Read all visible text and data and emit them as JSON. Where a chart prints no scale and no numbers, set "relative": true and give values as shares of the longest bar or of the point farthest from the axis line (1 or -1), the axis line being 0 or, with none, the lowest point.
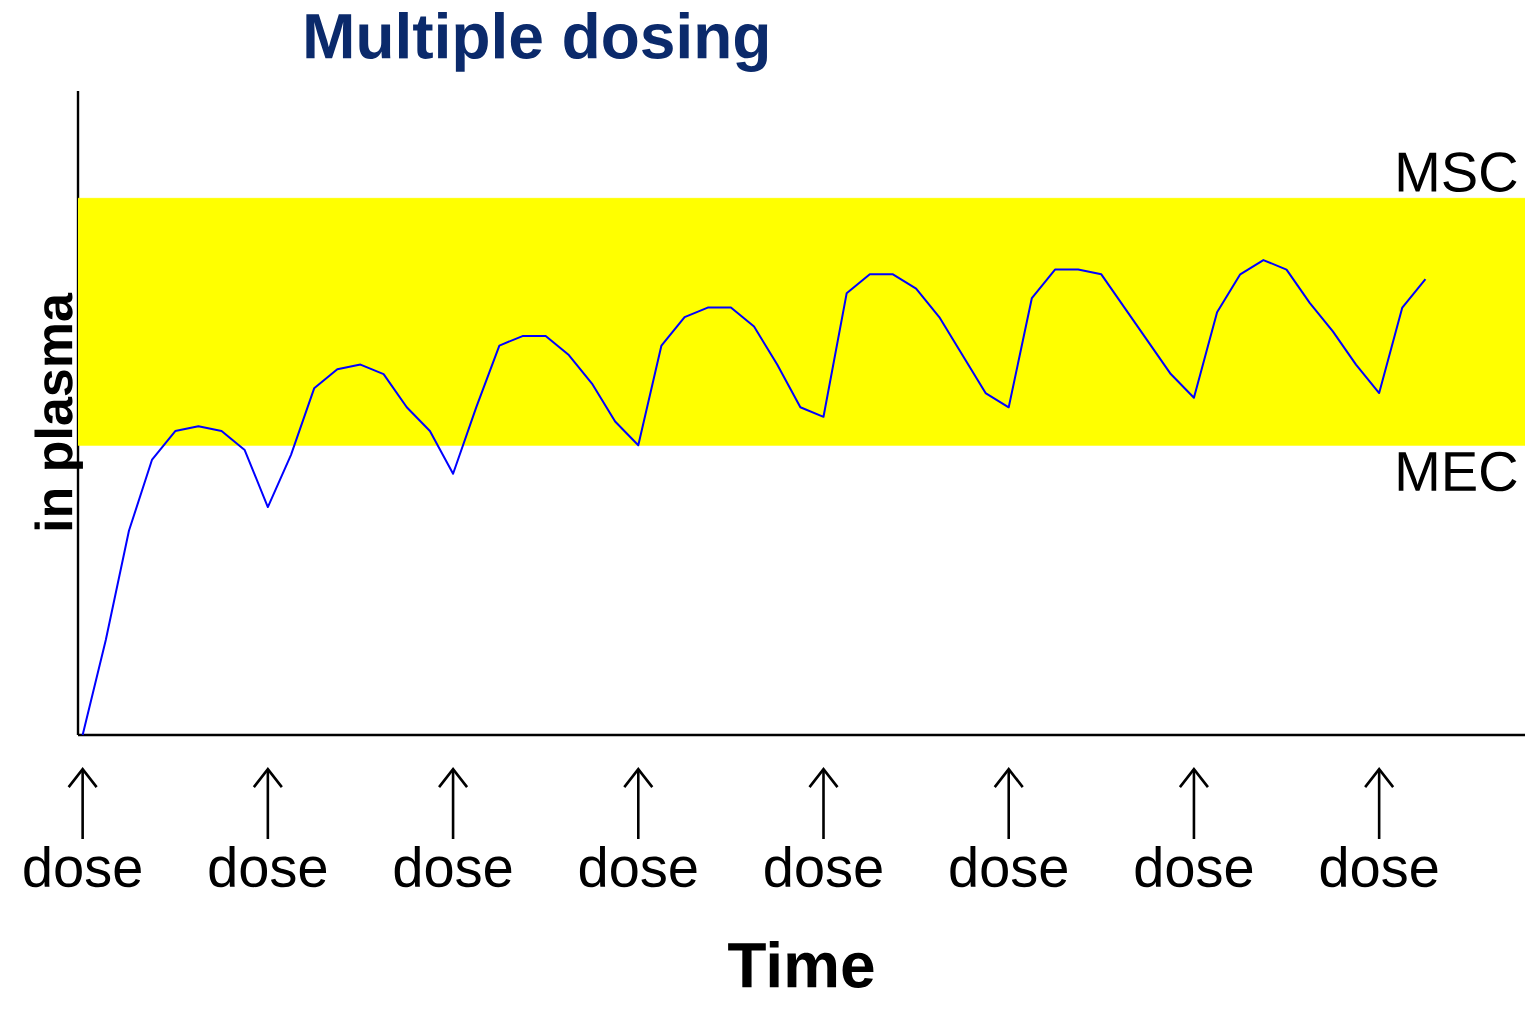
{
  "chart_data": {
    "type": "line",
    "title": "Multiple dosing",
    "xlabel": "Time",
    "ylabel": "in plasma",
    "relative": true,
    "color": "#0000ff",
    "categories": [
      "dose",
      null,
      null,
      null,
      null,
      null,
      null,
      null,
      "dose",
      null,
      null,
      null,
      null,
      null,
      null,
      null,
      "dose",
      null,
      null,
      null,
      null,
      null,
      null,
      null,
      "dose",
      null,
      null,
      null,
      null,
      null,
      null,
      null,
      "dose",
      null,
      null,
      null,
      null,
      null,
      null,
      null,
      "dose",
      null,
      null,
      null,
      null,
      null,
      null,
      null,
      "dose",
      null,
      null,
      null,
      null,
      null,
      null,
      null,
      "dose",
      null,
      null
    ],
    "values": [
      0,
      0.2,
      0.43,
      0.58,
      0.64,
      0.65,
      0.64,
      0.6,
      0.48,
      0.59,
      0.73,
      0.77,
      0.78,
      0.76,
      0.69,
      0.64,
      0.55,
      0.69,
      0.82,
      0.84,
      0.84,
      0.8,
      0.74,
      0.66,
      0.61,
      0.82,
      0.88,
      0.9,
      0.9,
      0.86,
      0.78,
      0.69,
      0.67,
      0.93,
      0.97,
      0.97,
      0.94,
      0.88,
      0.8,
      0.72,
      0.69,
      0.92,
      0.98,
      0.98,
      0.97,
      0.9,
      0.83,
      0.76,
      0.71,
      0.89,
      0.97,
      1.0,
      0.98,
      0.91,
      0.85,
      0.78,
      0.72,
      0.9,
      0.96
    ],
    "bands": [
      {
        "axis": "y",
        "from": 0.61,
        "to": 1.13,
        "color": "#ffff00"
      }
    ],
    "ref_lines": [
      {
        "axis": "y",
        "value": 1.13,
        "label": "MSC",
        "color": "#ffff00"
      },
      {
        "axis": "y",
        "value": 0.61,
        "label": "MEC",
        "color": "#ffff00"
      }
    ]
  }
}
